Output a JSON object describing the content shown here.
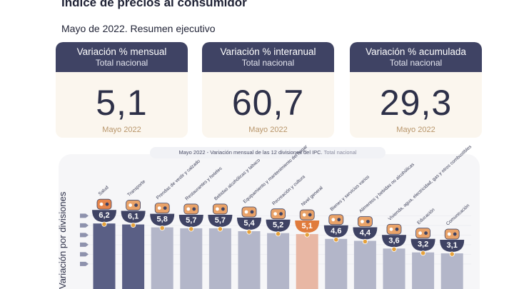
{
  "header": {
    "title": "Índice de precios al consumidor",
    "subtitle": "Mayo de 2022. Resumen ejecutivo"
  },
  "cards": [
    {
      "title": "Variación % mensual",
      "subtitle": "Total nacional",
      "value": "5,1",
      "date": "Mayo 2022"
    },
    {
      "title": "Variación % interanual",
      "subtitle": "Total nacional",
      "value": "60,7",
      "date": "Mayo 2022"
    },
    {
      "title": "Variación % acumulada",
      "subtitle": "Total nacional",
      "value": "29,3",
      "date": "Mayo 2022"
    }
  ],
  "chart_pill": {
    "main": "Mayo 2022 - Variación mensual de las 12 divisiones del IPC.",
    "muted": "Total nacional"
  },
  "colors": {
    "header_navy": "#3f4364",
    "bar_gray": "#b3b6c9",
    "bar_blue": "#5a5f85",
    "bar_highlight": "#e8b7a4",
    "bowl_navy": "#3f4364",
    "bowl_highlight": "#e07b3c",
    "icon_orange": "#e9a268",
    "dot_gold": "#e6a23c"
  },
  "chart_data": {
    "type": "bar",
    "title": "Mayo 2022 - Variación mensual de las 12 divisiones del IPC. Total nacional",
    "ylabel": "Variación por divisiones",
    "categories": [
      "Salud",
      "Transporte",
      "Prendas de vestir y calzado",
      "Restaurantes y hoteles",
      "Bebidas alcohólicas y tabaco",
      "Equipamiento y mantenimiento del hogar",
      "Recreación y cultura",
      "Nivel general",
      "Bienes y servicios varios",
      "Alimentos y bebidas no alcohólicas",
      "Vivienda, agua, electricidad, gas y otros combustibles",
      "Educación",
      "Comunicación"
    ],
    "value_labels": [
      "6,2",
      "6,1",
      "5,8",
      "5,7",
      "5,7",
      "5,4",
      "5,2",
      "5,1",
      "4,6",
      "4,4",
      "3,6",
      "3,2",
      "3,1"
    ],
    "values": [
      6.2,
      6.1,
      5.8,
      5.7,
      5.7,
      5.4,
      5.2,
      5.1,
      4.6,
      4.4,
      3.6,
      3.2,
      3.1
    ],
    "highlight_index": 7,
    "icons": [
      "medical-cross-icon",
      "car-icon",
      "clothing-icon",
      "cutlery-icon",
      "bottle-icon",
      "household-icon",
      "camera-icon",
      "basket-icon",
      "tools-icon",
      "food-icon",
      "lightbulb-icon",
      "graduation-icon",
      "phone-icon"
    ]
  }
}
